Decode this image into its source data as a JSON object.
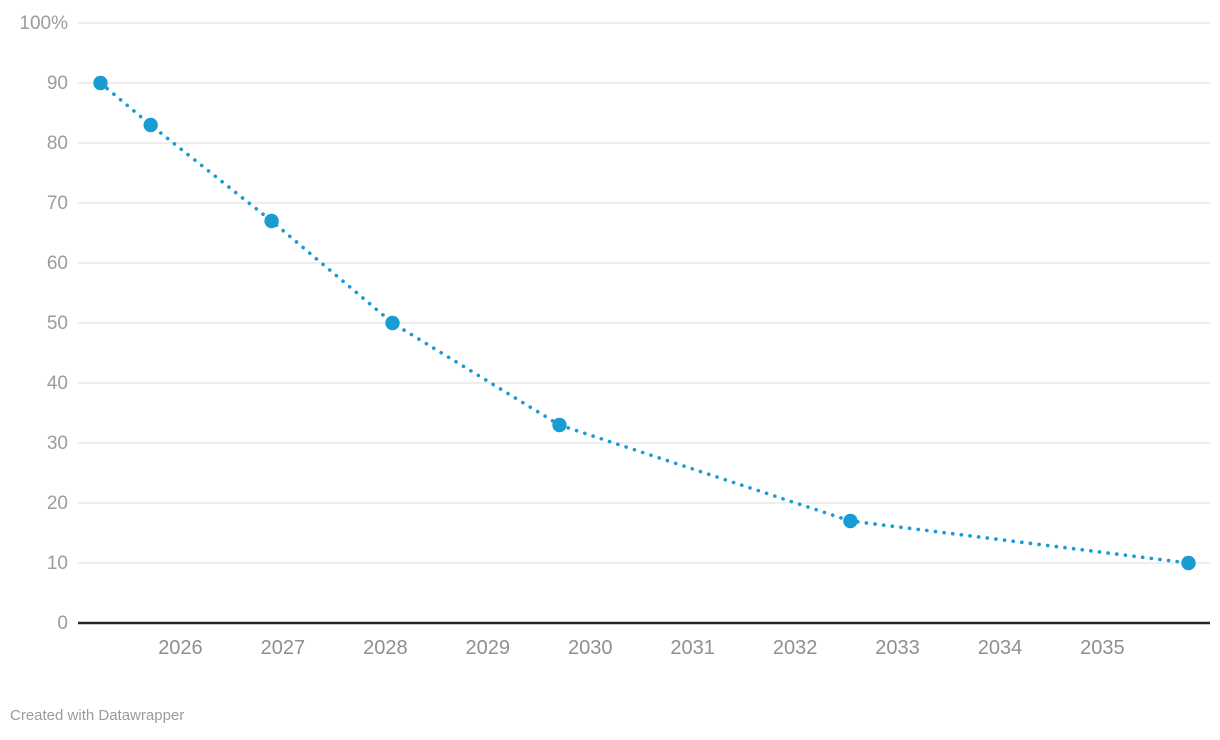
{
  "footer": {
    "credit": "Created with Datawrapper"
  },
  "chart_data": {
    "type": "line",
    "line_style": "dotted",
    "title": "",
    "xlabel": "",
    "ylabel": "",
    "legend": "none",
    "grid": "horizontal",
    "xlim": [
      2025.0,
      2036.05
    ],
    "ylim": [
      0,
      100
    ],
    "x_ticks": [
      2026,
      2027,
      2028,
      2029,
      2030,
      2031,
      2032,
      2033,
      2034,
      2035
    ],
    "y_ticks": [
      0,
      10,
      20,
      30,
      40,
      50,
      60,
      70,
      80,
      90,
      100
    ],
    "y_tick_labels": [
      "0",
      "10",
      "20",
      "30",
      "40",
      "50",
      "60",
      "70",
      "80",
      "90",
      "100%"
    ],
    "series": [
      {
        "name": "percent",
        "points": [
          {
            "x": 2025.22,
            "y": 90
          },
          {
            "x": 2025.71,
            "y": 83
          },
          {
            "x": 2026.89,
            "y": 67
          },
          {
            "x": 2028.07,
            "y": 50
          },
          {
            "x": 2029.7,
            "y": 33
          },
          {
            "x": 2032.54,
            "y": 17
          },
          {
            "x": 2035.84,
            "y": 10
          }
        ]
      }
    ],
    "colors": {
      "series": "#189cd1",
      "gridline": "#e9e9e9",
      "axis_line": "#242424",
      "y_tick_text": "#9c9c9c",
      "x_tick_text": "#8f8f8f"
    }
  }
}
